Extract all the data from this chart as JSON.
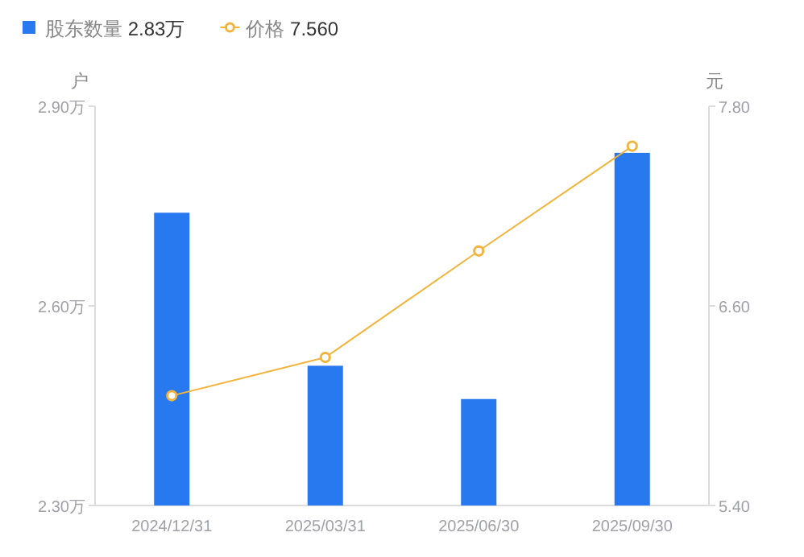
{
  "chart_data": {
    "type": "bar",
    "categories": [
      "2024/12/31",
      "2025/03/31",
      "2025/06/30",
      "2025/09/30"
    ],
    "series": [
      {
        "name": "股东数量 2.83万",
        "color": "#2878f0",
        "values": [
          2.74,
          2.51,
          2.46,
          2.83
        ]
      },
      {
        "name": "价格 7.560",
        "type": "line",
        "axis": "y2",
        "color": "#f2b43c",
        "marker": "circle",
        "values": [
          6.06,
          6.29,
          6.93,
          7.56
        ]
      }
    ],
    "ylabel": "户",
    "y2label": "元",
    "ylim": [
      2.3,
      2.9
    ],
    "yticks": [
      {
        "value": 2.3,
        "label": "2.30万"
      },
      {
        "value": 2.6,
        "label": "2.60万"
      },
      {
        "value": 2.9,
        "label": "2.90万"
      }
    ],
    "y2lim": [
      5.4,
      7.8
    ],
    "y2ticks": [
      {
        "value": 5.4,
        "label": "5.40"
      },
      {
        "value": 6.6,
        "label": "6.60"
      },
      {
        "value": 7.8,
        "label": "7.80"
      }
    ],
    "grid": false,
    "legend": "top left"
  }
}
